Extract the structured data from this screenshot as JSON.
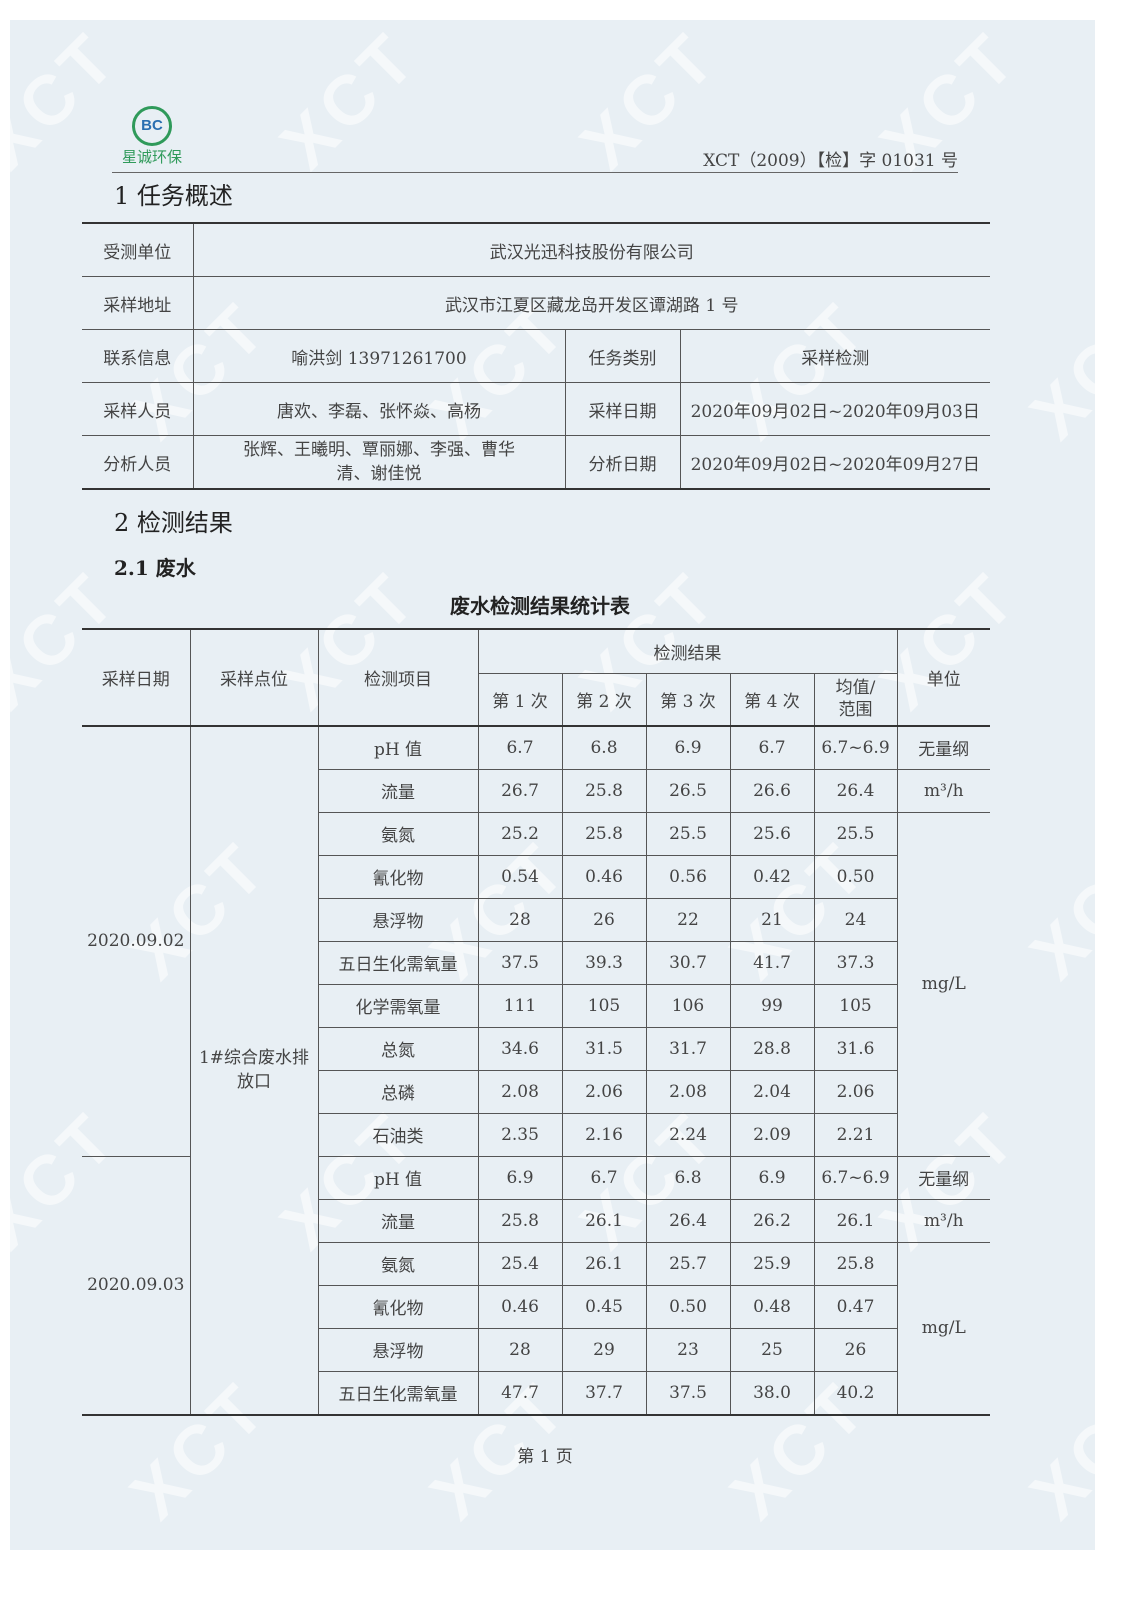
{
  "header": {
    "logo_text": "星诚环保",
    "logo_mark": "BC",
    "doc_number": "XCT（2009）【检】字 01031 号"
  },
  "watermark": "XCT",
  "section1": {
    "title": "1  任务概述",
    "rows": [
      {
        "label": "受测单位",
        "value": "武汉光迅科技股份有限公司"
      },
      {
        "label": "采样地址",
        "value": "武汉市江夏区藏龙岛开发区谭湖路 1 号"
      },
      {
        "label": "联系信息",
        "value": "喻洪剑 13971261700",
        "label2": "任务类别",
        "value2": "采样检测"
      },
      {
        "label": "采样人员",
        "value": "唐欢、李磊、张怀焱、高杨",
        "label2": "采样日期",
        "value2": "2020年09月02日~2020年09月03日"
      },
      {
        "label": "分析人员",
        "value": "张辉、王曦明、覃丽娜、李强、曹华清、谢佳悦",
        "label2": "分析日期",
        "value2": "2020年09月02日~2020年09月27日"
      }
    ]
  },
  "section2": {
    "title": "2  检测结果",
    "subtitle": "2.1  废水"
  },
  "results_table": {
    "caption": "废水检测结果统计表",
    "headers": {
      "date": "采样日期",
      "site": "采样点位",
      "item": "检测项目",
      "results": "检测结果",
      "r1": "第 1 次",
      "r2": "第 2 次",
      "r3": "第 3 次",
      "r4": "第 4 次",
      "avg": "均值/范围",
      "unit": "单位"
    },
    "site": "1#综合废水排放口",
    "groups": [
      {
        "date": "2020.09.02",
        "units": [
          {
            "unit": "无量纲",
            "span": 1
          },
          {
            "unit": "m³/h",
            "span": 1
          },
          {
            "unit": "mg/L",
            "span": 8
          }
        ],
        "rows": [
          [
            "pH 值",
            "6.7",
            "6.8",
            "6.9",
            "6.7",
            "6.7~6.9"
          ],
          [
            "流量",
            "26.7",
            "25.8",
            "26.5",
            "26.6",
            "26.4"
          ],
          [
            "氨氮",
            "25.2",
            "25.8",
            "25.5",
            "25.6",
            "25.5"
          ],
          [
            "氰化物",
            "0.54",
            "0.46",
            "0.56",
            "0.42",
            "0.50"
          ],
          [
            "悬浮物",
            "28",
            "26",
            "22",
            "21",
            "24"
          ],
          [
            "五日生化需氧量",
            "37.5",
            "39.3",
            "30.7",
            "41.7",
            "37.3"
          ],
          [
            "化学需氧量",
            "111",
            "105",
            "106",
            "99",
            "105"
          ],
          [
            "总氮",
            "34.6",
            "31.5",
            "31.7",
            "28.8",
            "31.6"
          ],
          [
            "总磷",
            "2.08",
            "2.06",
            "2.08",
            "2.04",
            "2.06"
          ],
          [
            "石油类",
            "2.35",
            "2.16",
            "2.24",
            "2.09",
            "2.21"
          ]
        ]
      },
      {
        "date": "2020.09.03",
        "units": [
          {
            "unit": "无量纲",
            "span": 1
          },
          {
            "unit": "m³/h",
            "span": 1
          },
          {
            "unit": "mg/L",
            "span": 4
          }
        ],
        "rows": [
          [
            "pH 值",
            "6.9",
            "6.7",
            "6.8",
            "6.9",
            "6.7~6.9"
          ],
          [
            "流量",
            "25.8",
            "26.1",
            "26.4",
            "26.2",
            "26.1"
          ],
          [
            "氨氮",
            "25.4",
            "26.1",
            "25.7",
            "25.9",
            "25.8"
          ],
          [
            "氰化物",
            "0.46",
            "0.45",
            "0.50",
            "0.48",
            "0.47"
          ],
          [
            "悬浮物",
            "28",
            "29",
            "23",
            "25",
            "26"
          ],
          [
            "五日生化需氧量",
            "47.7",
            "37.7",
            "37.5",
            "38.0",
            "40.2"
          ]
        ]
      }
    ]
  },
  "footer": {
    "page": "第 1 页"
  }
}
